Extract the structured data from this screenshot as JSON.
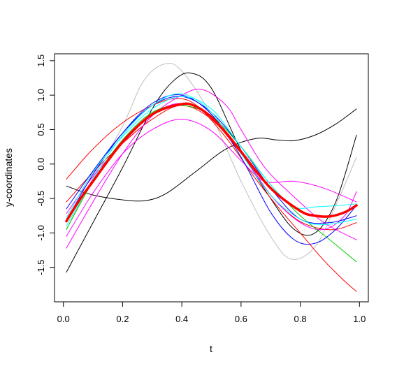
{
  "chart_data": {
    "type": "line",
    "title": "",
    "xlabel": "t",
    "ylabel": "y-coordinates",
    "xlim": [
      -0.03,
      1.03
    ],
    "ylim": [
      -2.0,
      1.6
    ],
    "xticks": [
      {
        "v": 0.0,
        "label": "0.0"
      },
      {
        "v": 0.2,
        "label": "0.2"
      },
      {
        "v": 0.4,
        "label": "0.4"
      },
      {
        "v": 0.6,
        "label": "0.6"
      },
      {
        "v": 0.8,
        "label": "0.8"
      },
      {
        "v": 1.0,
        "label": "1.0"
      }
    ],
    "yticks": [
      {
        "v": -1.5,
        "label": "-1.5"
      },
      {
        "v": -1.0,
        "label": "-1.0"
      },
      {
        "v": -0.5,
        "label": "-0.5"
      },
      {
        "v": 0.0,
        "label": "0.0"
      },
      {
        "v": 0.5,
        "label": "0.5"
      },
      {
        "v": 1.0,
        "label": "1.0"
      },
      {
        "v": 1.5,
        "label": "1.5"
      }
    ],
    "grid": false,
    "legend": "none",
    "series": [
      {
        "color": "#bebebe",
        "width": 1,
        "x": [
          0.01,
          0.1,
          0.2,
          0.27,
          0.34,
          0.4,
          0.5,
          0.6,
          0.7,
          0.77,
          0.85,
          0.92,
          0.99
        ],
        "y": [
          -0.95,
          -0.2,
          0.55,
          1.2,
          1.45,
          1.35,
          0.7,
          -0.25,
          -1.05,
          -1.38,
          -1.2,
          -0.6,
          0.1
        ]
      },
      {
        "color": "#000000",
        "width": 1,
        "x": [
          0.01,
          0.1,
          0.2,
          0.3,
          0.37,
          0.43,
          0.5,
          0.6,
          0.7,
          0.78,
          0.85,
          0.92,
          0.99
        ],
        "y": [
          -1.57,
          -0.85,
          -0.05,
          0.8,
          1.2,
          1.32,
          1.1,
          0.2,
          -0.5,
          -0.95,
          -1.0,
          -0.55,
          0.42
        ]
      },
      {
        "color": "#000000",
        "width": 1,
        "x": [
          0.01,
          0.1,
          0.2,
          0.28,
          0.35,
          0.45,
          0.55,
          0.65,
          0.72,
          0.78,
          0.85,
          0.92,
          0.99
        ],
        "y": [
          -0.32,
          -0.45,
          -0.52,
          -0.53,
          -0.42,
          -0.1,
          0.22,
          0.37,
          0.35,
          0.34,
          0.42,
          0.58,
          0.8
        ]
      },
      {
        "color": "#ff0000",
        "width": 1,
        "x": [
          0.01,
          0.1,
          0.2,
          0.3,
          0.38,
          0.45,
          0.55,
          0.65,
          0.72,
          0.8,
          0.88,
          0.95,
          0.99
        ],
        "y": [
          -0.22,
          0.22,
          0.6,
          0.85,
          0.95,
          0.85,
          0.38,
          -0.22,
          -0.6,
          -1.0,
          -1.4,
          -1.7,
          -1.85
        ]
      },
      {
        "color": "#ff0000",
        "width": 1,
        "x": [
          0.01,
          0.1,
          0.2,
          0.3,
          0.4,
          0.5,
          0.6,
          0.7,
          0.78,
          0.85,
          0.92,
          0.99
        ],
        "y": [
          -0.55,
          -0.12,
          0.3,
          0.65,
          0.85,
          0.65,
          0.15,
          -0.45,
          -0.78,
          -0.92,
          -0.95,
          -0.85
        ]
      },
      {
        "color": "#ff00ff",
        "width": 1,
        "x": [
          0.01,
          0.1,
          0.2,
          0.3,
          0.4,
          0.47,
          0.55,
          0.6,
          0.68,
          0.78,
          0.88,
          0.99
        ],
        "y": [
          -1.22,
          -0.55,
          0.15,
          0.7,
          1.0,
          1.08,
          0.85,
          0.5,
          -0.05,
          -0.48,
          -0.85,
          -1.1
        ]
      },
      {
        "color": "#ff00ff",
        "width": 1,
        "x": [
          0.01,
          0.1,
          0.2,
          0.3,
          0.4,
          0.5,
          0.6,
          0.68,
          0.78,
          0.88,
          0.99
        ],
        "y": [
          -1.05,
          -0.42,
          0.15,
          0.5,
          0.65,
          0.48,
          0.05,
          -0.25,
          -0.25,
          -0.35,
          -0.55
        ]
      },
      {
        "color": "#ff00ff",
        "width": 1,
        "x": [
          0.01,
          0.1,
          0.2,
          0.3,
          0.4,
          0.5,
          0.6,
          0.7,
          0.8,
          0.88,
          0.95,
          0.99
        ],
        "y": [
          -0.72,
          -0.18,
          0.3,
          0.72,
          0.88,
          0.68,
          0.18,
          -0.45,
          -0.85,
          -0.95,
          -0.75,
          -0.4
        ]
      },
      {
        "color": "#00cd00",
        "width": 1,
        "x": [
          0.01,
          0.1,
          0.2,
          0.3,
          0.4,
          0.5,
          0.6,
          0.7,
          0.8,
          0.9,
          0.99
        ],
        "y": [
          -0.95,
          -0.25,
          0.35,
          0.75,
          0.85,
          0.7,
          0.25,
          -0.3,
          -0.75,
          -1.1,
          -1.42
        ]
      },
      {
        "color": "#0000ff",
        "width": 1,
        "x": [
          0.01,
          0.1,
          0.2,
          0.3,
          0.4,
          0.5,
          0.6,
          0.7,
          0.78,
          0.85,
          0.92,
          0.99
        ],
        "y": [
          -0.82,
          -0.15,
          0.45,
          0.88,
          1.0,
          0.72,
          0.1,
          -0.7,
          -1.1,
          -1.15,
          -0.95,
          -0.6
        ]
      },
      {
        "color": "#0000ff",
        "width": 1,
        "x": [
          0.01,
          0.1,
          0.2,
          0.3,
          0.4,
          0.5,
          0.6,
          0.7,
          0.8,
          0.9,
          0.99
        ],
        "y": [
          -0.65,
          -0.1,
          0.45,
          0.85,
          0.98,
          0.75,
          0.25,
          -0.35,
          -0.8,
          -0.85,
          -0.75
        ]
      },
      {
        "color": "#00ffff",
        "width": 1,
        "x": [
          0.01,
          0.1,
          0.2,
          0.3,
          0.4,
          0.5,
          0.6,
          0.7,
          0.8,
          0.88,
          0.99
        ],
        "y": [
          -0.9,
          -0.22,
          0.42,
          0.85,
          1.02,
          0.75,
          0.15,
          -0.45,
          -0.8,
          -0.88,
          -0.8
        ]
      },
      {
        "color": "#00ffff",
        "width": 1,
        "x": [
          0.01,
          0.1,
          0.2,
          0.3,
          0.4,
          0.5,
          0.6,
          0.7,
          0.78,
          0.86,
          0.99
        ],
        "y": [
          -0.78,
          -0.12,
          0.4,
          0.8,
          0.98,
          0.8,
          0.25,
          -0.3,
          -0.62,
          -0.62,
          -0.58
        ]
      },
      {
        "color": "#ff0000",
        "width": 3.5,
        "x": [
          0.01,
          0.05,
          0.1,
          0.2,
          0.3,
          0.4,
          0.45,
          0.5,
          0.55,
          0.6,
          0.7,
          0.8,
          0.85,
          0.9,
          0.95,
          0.99
        ],
        "y": [
          -0.83,
          -0.55,
          -0.25,
          0.32,
          0.72,
          0.87,
          0.83,
          0.68,
          0.45,
          0.18,
          -0.35,
          -0.68,
          -0.75,
          -0.76,
          -0.7,
          -0.6
        ]
      }
    ]
  }
}
